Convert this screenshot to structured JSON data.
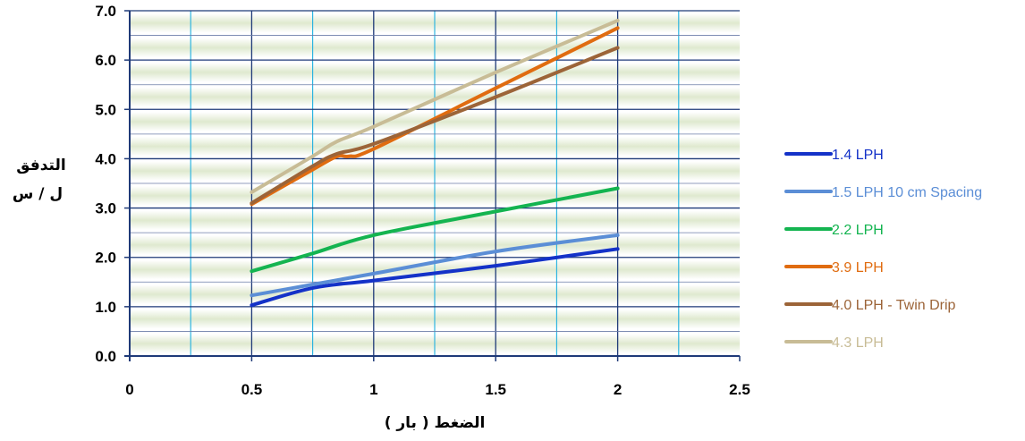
{
  "chart_data": {
    "type": "line",
    "xlabel": "الضغط ( بار )",
    "ylabel_line1": "التدفق",
    "ylabel_line2": "ل / س",
    "xlim": [
      0,
      2.5
    ],
    "ylim": [
      0,
      7
    ],
    "x_ticks": [
      "0",
      "0.5",
      "1",
      "1.5",
      "2",
      "2.5"
    ],
    "y_ticks": [
      "0.0",
      "1.0",
      "2.0",
      "3.0",
      "4.0",
      "5.0",
      "6.0",
      "7.0"
    ],
    "grid": true,
    "legend_position": "right",
    "series": [
      {
        "name": "1.4 LPH",
        "color": "#1432c8",
        "points": [
          [
            0.5,
            1.03
          ],
          [
            0.75,
            1.38
          ],
          [
            1.0,
            1.53
          ],
          [
            1.5,
            1.83
          ],
          [
            2.0,
            2.17
          ]
        ]
      },
      {
        "name": "1.5 LPH 10 cm Spacing",
        "color": "#5b8ed6",
        "points": [
          [
            0.5,
            1.23
          ],
          [
            0.75,
            1.45
          ],
          [
            1.0,
            1.67
          ],
          [
            1.5,
            2.12
          ],
          [
            2.0,
            2.45
          ]
        ]
      },
      {
        "name": "2.2 LPH",
        "color": "#14b450",
        "points": [
          [
            0.5,
            1.72
          ],
          [
            0.75,
            2.08
          ],
          [
            1.0,
            2.45
          ],
          [
            1.5,
            2.93
          ],
          [
            2.0,
            3.4
          ]
        ]
      },
      {
        "name": "3.9 LPH",
        "color": "#e06c10",
        "points": [
          [
            0.5,
            3.08
          ],
          [
            0.75,
            3.78
          ],
          [
            0.85,
            4.05
          ],
          [
            0.9,
            4.05
          ],
          [
            1.0,
            4.2
          ],
          [
            1.5,
            5.43
          ],
          [
            2.0,
            6.65
          ]
        ]
      },
      {
        "name": "4.0 LPH - Twin Drip",
        "color": "#9c6438",
        "points": [
          [
            0.5,
            3.1
          ],
          [
            0.75,
            3.85
          ],
          [
            0.85,
            4.1
          ],
          [
            1.0,
            4.3
          ],
          [
            1.5,
            5.25
          ],
          [
            2.0,
            6.25
          ]
        ]
      },
      {
        "name": "4.3 LPH",
        "color": "#c8bc96",
        "points": [
          [
            0.5,
            3.32
          ],
          [
            0.75,
            4.05
          ],
          [
            0.85,
            4.35
          ],
          [
            1.0,
            4.65
          ],
          [
            1.5,
            5.75
          ],
          [
            2.0,
            6.8
          ]
        ]
      }
    ]
  }
}
